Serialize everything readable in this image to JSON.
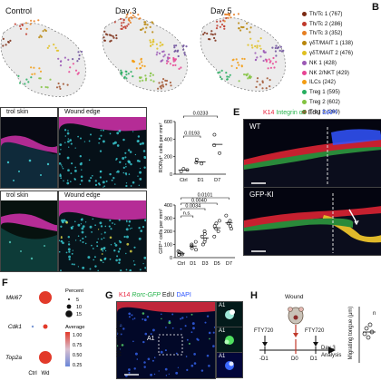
{
  "panel_b": {
    "letter": "B",
    "umap_titles": [
      "Control",
      "Day 3",
      "Day 5"
    ],
    "legend": [
      {
        "label": "Th/Tc 1 (767)",
        "color": "#7a2a12"
      },
      {
        "label": "Th/Tc 2 (286)",
        "color": "#c0392b"
      },
      {
        "label": "Th/Tc 3 (352)",
        "color": "#e67e22"
      },
      {
        "label": "γδT/MAIT 1 (138)",
        "color": "#b8860b"
      },
      {
        "label": "γδT/MAIT 2 (476)",
        "color": "#e0c020"
      },
      {
        "label": "NK 1 (428)",
        "color": "#9b59b6"
      },
      {
        "label": "NK 2/NKT (429)",
        "color": "#e84393"
      },
      {
        "label": "ILCs (242)",
        "color": "#f39c12"
      },
      {
        "label": "Treg 1 (595)",
        "color": "#27ae60"
      },
      {
        "label": "Treg 2 (602)",
        "color": "#82c341"
      },
      {
        "label": "Treg 3 (260)",
        "color": "#a0522d"
      },
      {
        "label": "Treg 4 (431)",
        "color": "#6b4c9a"
      }
    ]
  },
  "panel_c": {
    "labels": [
      "trol skin",
      "Wound edge",
      "trol skin",
      "Wound edge"
    ]
  },
  "charts": {
    "ror": {
      "ylabel": "RORγt⁺ cells per mm²",
      "yticks": [
        "0",
        "200",
        "400",
        "600"
      ],
      "categories": [
        "Ctrl",
        "D1",
        "D7"
      ],
      "pvalues": [
        "0.0233",
        "0.0193"
      ]
    },
    "gfp": {
      "ylabel": "GFP⁺ cells per mm²",
      "yticks": [
        "0",
        "100",
        "200",
        "300",
        "400"
      ],
      "categories": [
        "Ctrl",
        "D1",
        "D3",
        "D5",
        "D7"
      ],
      "pvalues": [
        "0.0101",
        "0.0040",
        "0.0034",
        "n.s."
      ]
    }
  },
  "panel_e": {
    "letter": "E",
    "title_k14": "K14",
    "title_integrin": "Integrin α5",
    "title_edu": "EdU",
    "title_dapi": "DAPI",
    "colors": {
      "k14": "#e8213b",
      "integrin": "#25b34a",
      "edu": "#ffffff",
      "dapi": "#2a53ff"
    },
    "wt_label": "WT",
    "ki_label": "GFP-KI"
  },
  "panel_f": {
    "letter": "F",
    "genes": [
      "Mki67",
      "Cdk1",
      "Top2a"
    ],
    "xcategories": [
      "Ctrl",
      "Wd"
    ],
    "percent_title": "Percent",
    "percent_values": [
      "5",
      "10",
      "15"
    ],
    "average_title": "Average",
    "average_values": [
      "1.00",
      "0.75",
      "0.50",
      "0.25"
    ]
  },
  "panel_g": {
    "letter": "G",
    "title_k14": "K14",
    "title_rorc": "Rorc-GFP",
    "title_edu": "EdU",
    "title_dapi": "DAPI",
    "side_label": "Wound edge",
    "inset_label": "A1",
    "inset_labels": [
      "A1",
      "A1",
      "A1"
    ]
  },
  "panel_h": {
    "letter": "H",
    "wound_label": "Wound",
    "timeline": [
      "-D1",
      "D0",
      "D1",
      "Day 3"
    ],
    "drug_labels": [
      "FTY720",
      "FTY720"
    ],
    "analysis": "Analysis",
    "ylabel": "Migrating tongue (μm)",
    "tick": "n"
  }
}
